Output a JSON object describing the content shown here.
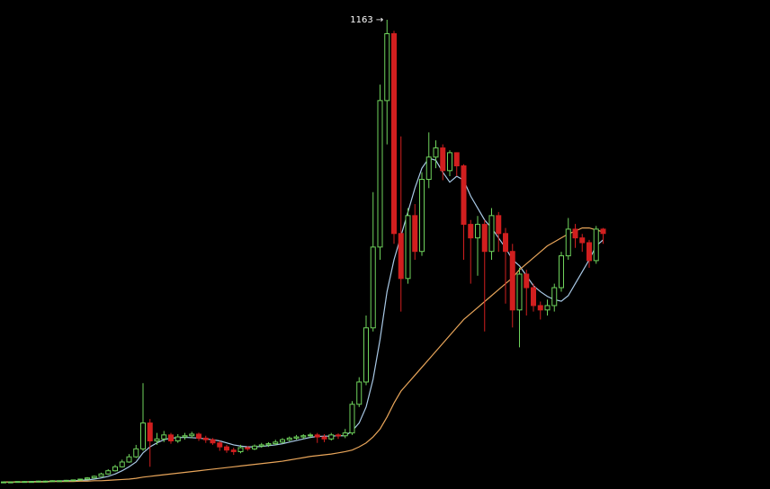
{
  "chart_data": {
    "type": "candlestick",
    "annotation": "1163 →",
    "ylim": [
      0,
      1200
    ],
    "up_color": "#6fd35c",
    "down_color": "#d11f1f",
    "open": [
      2,
      2,
      2,
      3,
      3,
      3,
      4,
      4,
      5,
      5,
      6,
      7,
      9,
      12,
      16,
      22,
      30,
      40,
      52,
      65,
      85,
      150,
      105,
      110,
      120,
      105,
      115,
      118,
      122,
      112,
      108,
      100,
      90,
      82,
      78,
      88,
      85,
      92,
      95,
      98,
      102,
      108,
      112,
      115,
      118,
      120,
      115,
      110,
      120,
      118,
      125,
      197,
      253,
      389,
      592,
      960,
      1128,
      626,
      513,
      671,
      581,
      762,
      818,
      841,
      784,
      829,
      796,
      649,
      615,
      649,
      581,
      671,
      626,
      581,
      434,
      524,
      490,
      445,
      434,
      445,
      490,
      570,
      637,
      615,
      603,
      558,
      637
    ],
    "high": [
      3,
      3,
      3,
      4,
      4,
      5,
      5,
      6,
      6,
      7,
      8,
      10,
      14,
      18,
      25,
      34,
      45,
      58,
      72,
      95,
      250,
      160,
      125,
      130,
      125,
      122,
      125,
      128,
      126,
      118,
      112,
      105,
      95,
      88,
      95,
      92,
      96,
      100,
      102,
      108,
      112,
      116,
      120,
      122,
      125,
      125,
      122,
      125,
      124,
      135,
      205,
      265,
      420,
      730,
      1000,
      1163,
      1135,
      870,
      690,
      700,
      780,
      880,
      860,
      850,
      835,
      830,
      800,
      660,
      670,
      660,
      690,
      680,
      640,
      600,
      540,
      535,
      500,
      455,
      460,
      500,
      580,
      665,
      650,
      625,
      610,
      645,
      640
    ],
    "low": [
      1,
      1,
      2,
      2,
      2,
      3,
      3,
      4,
      4,
      5,
      5,
      6,
      8,
      11,
      15,
      20,
      28,
      38,
      50,
      62,
      80,
      40,
      95,
      102,
      98,
      100,
      108,
      112,
      105,
      100,
      95,
      80,
      75,
      70,
      74,
      80,
      82,
      88,
      90,
      95,
      98,
      104,
      108,
      110,
      112,
      100,
      102,
      106,
      110,
      112,
      120,
      190,
      245,
      380,
      560,
      850,
      600,
      430,
      500,
      560,
      570,
      740,
      790,
      760,
      770,
      770,
      560,
      500,
      520,
      380,
      560,
      580,
      450,
      390,
      340,
      420,
      430,
      410,
      420,
      430,
      480,
      560,
      590,
      580,
      540,
      550,
      600
    ],
    "close": [
      2,
      2,
      3,
      3,
      3,
      4,
      4,
      5,
      5,
      6,
      7,
      9,
      12,
      16,
      22,
      30,
      40,
      52,
      65,
      85,
      150,
      105,
      110,
      120,
      105,
      115,
      118,
      122,
      112,
      108,
      100,
      90,
      82,
      78,
      88,
      85,
      92,
      95,
      98,
      102,
      108,
      112,
      115,
      118,
      120,
      115,
      110,
      120,
      118,
      125,
      197,
      253,
      389,
      592,
      960,
      1128,
      626,
      513,
      671,
      581,
      762,
      818,
      841,
      784,
      829,
      796,
      649,
      615,
      649,
      581,
      671,
      626,
      581,
      434,
      524,
      490,
      445,
      434,
      445,
      490,
      570,
      637,
      615,
      603,
      558,
      637,
      626
    ],
    "moving_averages": [
      {
        "color": "#a9c9e6",
        "values": [
          2,
          2,
          2,
          2,
          3,
          3,
          3,
          4,
          4,
          5,
          5,
          6,
          7,
          9,
          12,
          16,
          22,
          30,
          40,
          52,
          75,
          90,
          100,
          108,
          112,
          113,
          114,
          113,
          112,
          110,
          108,
          105,
          100,
          95,
          92,
          90,
          90,
          91,
          93,
          95,
          98,
          102,
          106,
          110,
          114,
          116,
          117,
          117,
          118,
          118,
          130,
          150,
          190,
          260,
          360,
          480,
          560,
          620,
          680,
          740,
          790,
          815,
          810,
          780,
          755,
          770,
          760,
          720,
          690,
          660,
          640,
          615,
          590,
          560,
          545,
          520,
          495,
          480,
          468,
          460,
          456,
          470,
          500,
          530,
          560,
          595,
          610
        ]
      },
      {
        "color": "#e8a55a",
        "values": [
          2,
          2,
          2,
          2,
          2,
          2,
          2,
          3,
          3,
          3,
          3,
          4,
          4,
          5,
          5,
          6,
          7,
          8,
          9,
          11,
          14,
          16,
          18,
          20,
          22,
          24,
          26,
          28,
          30,
          32,
          34,
          36,
          38,
          40,
          42,
          44,
          46,
          48,
          50,
          52,
          54,
          57,
          60,
          63,
          66,
          68,
          70,
          72,
          75,
          78,
          82,
          90,
          100,
          115,
          135,
          165,
          200,
          230,
          250,
          270,
          290,
          310,
          330,
          350,
          370,
          390,
          410,
          425,
          440,
          455,
          470,
          485,
          500,
          515,
          535,
          550,
          565,
          580,
          595,
          605,
          615,
          625,
          632,
          640,
          640,
          635,
          630
        ]
      }
    ]
  }
}
